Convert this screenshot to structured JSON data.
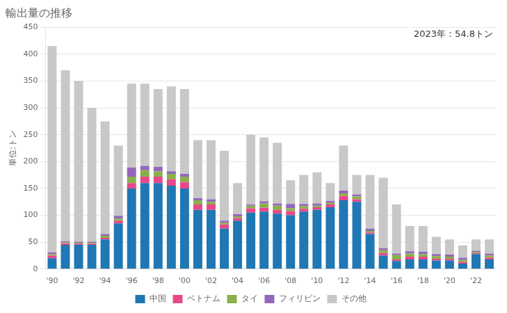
{
  "chart_data": {
    "type": "bar",
    "title": "輸出量の推移",
    "ylabel": "単位:トン",
    "annotation": "2023年：54.8トン",
    "categories": [
      "'90",
      null,
      "'92",
      null,
      "'94",
      null,
      "'96",
      null,
      "'98",
      null,
      "'00",
      null,
      "'02",
      null,
      "'04",
      null,
      "'06",
      null,
      "'08",
      null,
      "'10",
      null,
      "'12",
      null,
      "'14",
      null,
      "'16",
      null,
      "'18",
      null,
      "'20",
      null,
      "'22",
      null
    ],
    "series": [
      {
        "name": "中国",
        "color": "#1f77b4",
        "values": [
          20,
          45,
          45,
          45,
          55,
          85,
          150,
          160,
          160,
          155,
          150,
          110,
          110,
          75,
          90,
          105,
          107,
          103,
          100,
          107,
          110,
          115,
          128,
          125,
          65,
          25,
          15,
          18,
          18,
          16,
          16,
          10,
          28,
          18
        ]
      },
      {
        "name": "ベトナム",
        "color": "#e8488a",
        "values": [
          5,
          3,
          2,
          2,
          3,
          5,
          10,
          12,
          12,
          12,
          12,
          10,
          10,
          8,
          5,
          8,
          7,
          7,
          8,
          5,
          5,
          5,
          8,
          5,
          3,
          5,
          3,
          5,
          5,
          3,
          3,
          3,
          2,
          3
        ]
      },
      {
        "name": "タイ",
        "color": "#8ab04b",
        "values": [
          3,
          2,
          2,
          2,
          4,
          4,
          12,
          12,
          10,
          10,
          10,
          8,
          5,
          3,
          3,
          5,
          8,
          8,
          5,
          5,
          3,
          3,
          5,
          5,
          3,
          5,
          8,
          6,
          5,
          5,
          4,
          4,
          2,
          4
        ]
      },
      {
        "name": "フィリピン",
        "color": "#9467bd",
        "values": [
          3,
          2,
          2,
          2,
          3,
          5,
          17,
          8,
          8,
          5,
          5,
          4,
          5,
          4,
          4,
          2,
          4,
          4,
          8,
          4,
          4,
          4,
          5,
          4,
          4,
          4,
          3,
          4,
          4,
          4,
          4,
          4,
          2,
          4
        ]
      },
      {
        "name": "その他",
        "color": "#c8c8c8",
        "values": [
          384,
          318,
          299,
          249,
          210,
          131,
          156,
          153,
          145,
          158,
          158,
          108,
          110,
          130,
          58,
          130,
          119,
          113,
          44,
          54,
          58,
          33,
          84,
          36,
          100,
          131,
          91,
          47,
          48,
          32,
          28,
          23,
          21,
          26
        ]
      }
    ],
    "stacked": true,
    "ylim": [
      0,
      450
    ],
    "yticks": [
      0,
      50,
      100,
      150,
      200,
      250,
      300,
      350,
      400,
      450
    ],
    "grid": "y",
    "legend": "bottom"
  }
}
